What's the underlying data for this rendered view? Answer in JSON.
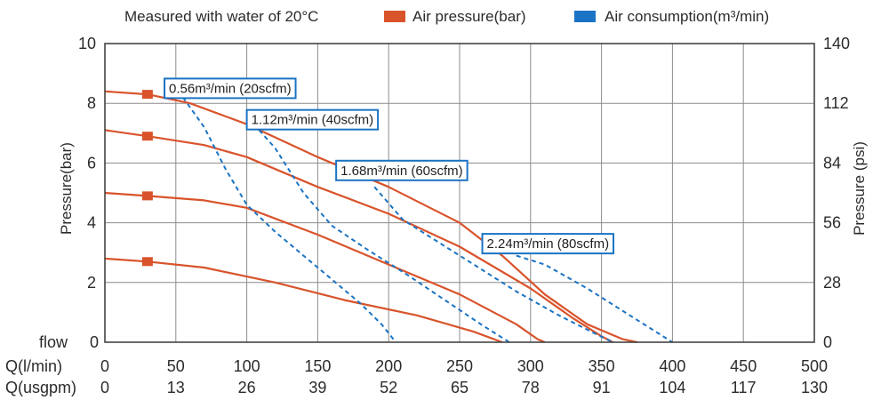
{
  "header": {
    "note": "Measured with water of 20°C",
    "legend": [
      {
        "label": "Air pressure(bar)",
        "color": "#d9532b",
        "marker": "square"
      },
      {
        "label": "Air consumption(m³/min)",
        "color": "#1a73c4",
        "marker": "square"
      }
    ]
  },
  "chart_data": {
    "type": "line",
    "xlabel": "",
    "ylabel_left": "Pressure(bar)",
    "ylabel_right": "Pressure (psi)",
    "xlim": [
      0,
      500
    ],
    "ylim": [
      0,
      10
    ],
    "ylim_right": [
      0,
      140
    ],
    "grid": true,
    "legend_position": "top",
    "x_ticks": [
      0,
      50,
      100,
      150,
      200,
      250,
      300,
      350,
      400,
      450,
      500
    ],
    "x_ticks_usgpm": [
      "0",
      "13",
      "26",
      "39",
      "52",
      "65",
      "78",
      "91",
      "104",
      "117",
      "130"
    ],
    "x_row_labels": [
      "Q(l/min)",
      "Q(usgpm)"
    ],
    "y_tick_labels_left": [
      "0",
      "2",
      "4",
      "6",
      "8",
      "10"
    ],
    "y_tick_labels_right": [
      "0",
      "28",
      "56",
      "84",
      "112",
      "140"
    ],
    "y_zero_label": "flow",
    "pressure_curves": [
      {
        "color": "#d9532b",
        "marker_x": 30,
        "points": [
          [
            0,
            8.4
          ],
          [
            30,
            8.3
          ],
          [
            60,
            8.0
          ],
          [
            100,
            7.3
          ],
          [
            150,
            6.2
          ],
          [
            200,
            5.2
          ],
          [
            250,
            4.0
          ],
          [
            280,
            2.9
          ],
          [
            310,
            1.6
          ],
          [
            340,
            0.6
          ],
          [
            365,
            0.1
          ],
          [
            375,
            0
          ]
        ]
      },
      {
        "color": "#d9532b",
        "marker_x": 30,
        "points": [
          [
            0,
            7.1
          ],
          [
            30,
            6.9
          ],
          [
            70,
            6.6
          ],
          [
            100,
            6.2
          ],
          [
            150,
            5.2
          ],
          [
            200,
            4.3
          ],
          [
            250,
            3.2
          ],
          [
            300,
            1.8
          ],
          [
            330,
            0.8
          ],
          [
            350,
            0.2
          ],
          [
            358,
            0
          ]
        ]
      },
      {
        "color": "#d9532b",
        "marker_x": 30,
        "points": [
          [
            0,
            5.0
          ],
          [
            30,
            4.9
          ],
          [
            70,
            4.75
          ],
          [
            100,
            4.5
          ],
          [
            150,
            3.6
          ],
          [
            200,
            2.6
          ],
          [
            250,
            1.6
          ],
          [
            290,
            0.6
          ],
          [
            305,
            0.1
          ],
          [
            310,
            0
          ]
        ]
      },
      {
        "color": "#d9532b",
        "marker_x": 30,
        "points": [
          [
            0,
            2.8
          ],
          [
            30,
            2.7
          ],
          [
            70,
            2.5
          ],
          [
            120,
            2.0
          ],
          [
            170,
            1.4
          ],
          [
            220,
            0.9
          ],
          [
            260,
            0.35
          ],
          [
            280,
            0
          ]
        ]
      }
    ],
    "consumption_curves": [
      {
        "label": "0.56m³/min (20scfm)",
        "color": "#1a73c4",
        "label_anchor": [
          42,
          8.5
        ],
        "points": [
          [
            55,
            8.2
          ],
          [
            70,
            7.2
          ],
          [
            85,
            5.8
          ],
          [
            100,
            4.6
          ],
          [
            120,
            3.7
          ],
          [
            140,
            2.9
          ],
          [
            160,
            2.1
          ],
          [
            180,
            1.3
          ],
          [
            195,
            0.6
          ],
          [
            205,
            0
          ]
        ]
      },
      {
        "label": "1.12m³/min (40scfm)",
        "color": "#1a73c4",
        "label_anchor": [
          100,
          7.45
        ],
        "points": [
          [
            105,
            7.3
          ],
          [
            120,
            6.5
          ],
          [
            140,
            5.0
          ],
          [
            160,
            3.9
          ],
          [
            185,
            3.1
          ],
          [
            215,
            2.2
          ],
          [
            240,
            1.4
          ],
          [
            265,
            0.6
          ],
          [
            285,
            0
          ]
        ]
      },
      {
        "label": "1.68m³/min (60scfm)",
        "color": "#1a73c4",
        "label_anchor": [
          163,
          5.75
        ],
        "points": [
          [
            190,
            5.2
          ],
          [
            210,
            4.1
          ],
          [
            230,
            3.5
          ],
          [
            260,
            2.6
          ],
          [
            290,
            1.7
          ],
          [
            320,
            0.9
          ],
          [
            345,
            0.3
          ],
          [
            358,
            0
          ]
        ]
      },
      {
        "label": "2.24m³/min (80scfm)",
        "color": "#1a73c4",
        "label_anchor": [
          266,
          3.3
        ],
        "points": [
          [
            290,
            2.9
          ],
          [
            310,
            2.6
          ],
          [
            340,
            1.8
          ],
          [
            370,
            0.9
          ],
          [
            390,
            0.3
          ],
          [
            400,
            0
          ]
        ]
      }
    ]
  }
}
